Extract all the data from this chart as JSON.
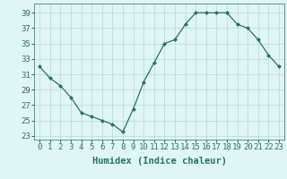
{
  "x": [
    0,
    1,
    2,
    3,
    4,
    5,
    6,
    7,
    8,
    9,
    10,
    11,
    12,
    13,
    14,
    15,
    16,
    17,
    18,
    19,
    20,
    21,
    22,
    23
  ],
  "y": [
    32.0,
    30.5,
    29.5,
    28.0,
    26.0,
    25.5,
    25.0,
    24.5,
    23.5,
    26.5,
    30.0,
    32.5,
    35.0,
    35.5,
    37.5,
    39.0,
    39.0,
    39.0,
    39.0,
    37.5,
    37.0,
    35.5,
    33.5,
    32.0
  ],
  "line_color": "#2d6e6e",
  "marker": "D",
  "marker_size": 2.0,
  "bg_color": "#e0f5f5",
  "grid_color": "#b8d8d8",
  "xlabel": "Humidex (Indice chaleur)",
  "xticks": [
    0,
    1,
    2,
    3,
    4,
    5,
    6,
    7,
    8,
    9,
    10,
    11,
    12,
    13,
    14,
    15,
    16,
    17,
    18,
    19,
    20,
    21,
    22,
    23
  ],
  "yticks": [
    23,
    25,
    27,
    29,
    31,
    33,
    35,
    37,
    39
  ],
  "ylim": [
    22.5,
    40.2
  ],
  "xlim": [
    -0.5,
    23.5
  ],
  "tick_label_size": 6.5,
  "xlabel_size": 7.5,
  "linewidth": 0.9
}
